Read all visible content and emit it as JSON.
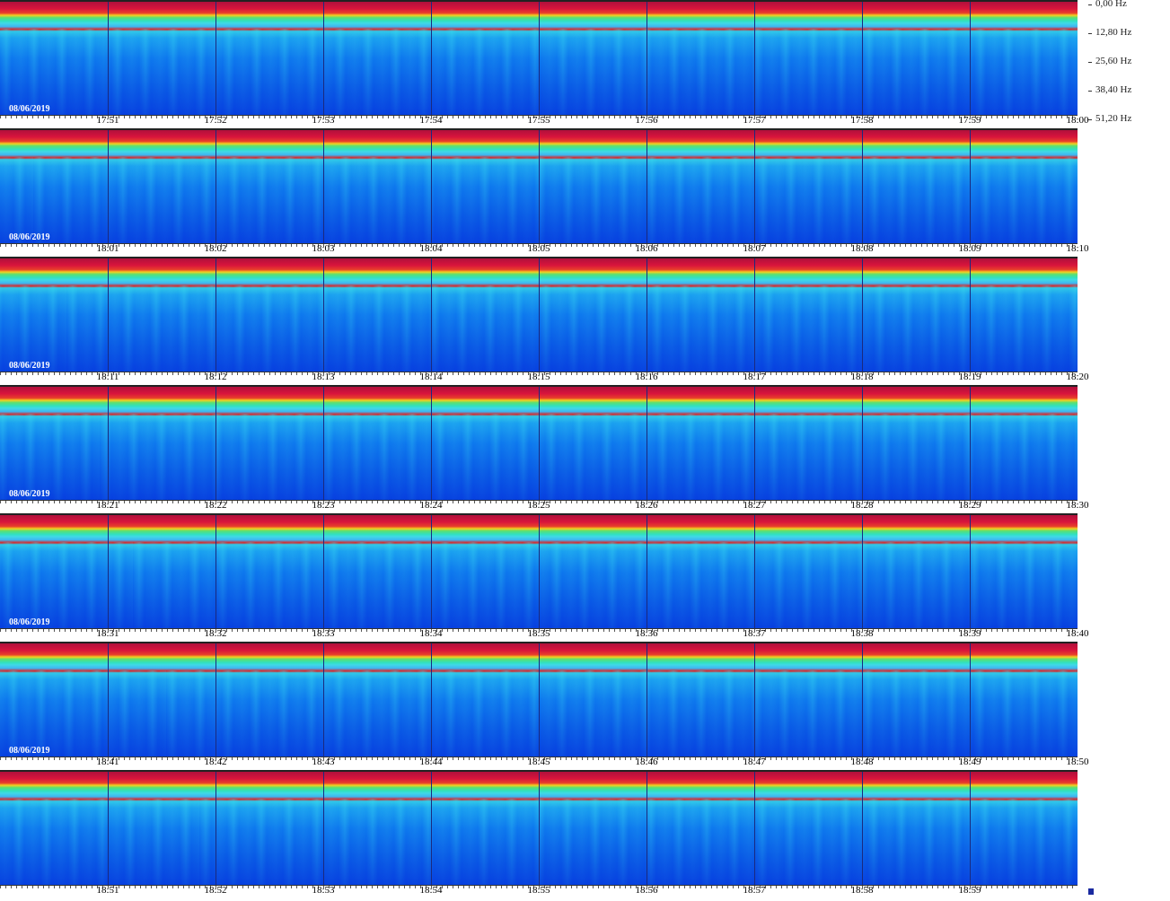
{
  "frequency_labels": [
    "0,00 Hz",
    "12,80 Hz",
    "25,60 Hz",
    "38,40 Hz",
    "51,20 Hz"
  ],
  "rows": [
    {
      "date": "08/06/2019",
      "times": [
        "17:51",
        "17:52",
        "17:53",
        "17:54",
        "17:55",
        "17:56",
        "17:57",
        "17:58",
        "17:59",
        "18:00"
      ]
    },
    {
      "date": "08/06/2019",
      "times": [
        "18:01",
        "18:02",
        "18:03",
        "18:04",
        "18:05",
        "18:06",
        "18:07",
        "18:08",
        "18:09",
        "18:10"
      ]
    },
    {
      "date": "08/06/2019",
      "times": [
        "18:11",
        "18:12",
        "18:13",
        "18:14",
        "18:15",
        "18:16",
        "18:17",
        "18:18",
        "18:19",
        "18:20"
      ]
    },
    {
      "date": "08/06/2019",
      "times": [
        "18:21",
        "18:22",
        "18:23",
        "18:24",
        "18:25",
        "18:26",
        "18:27",
        "18:28",
        "18:29",
        "18:30"
      ]
    },
    {
      "date": "08/06/2019",
      "times": [
        "18:31",
        "18:32",
        "18:33",
        "18:34",
        "18:35",
        "18:36",
        "18:37",
        "18:38",
        "18:39",
        "18:40"
      ]
    },
    {
      "date": "08/06/2019",
      "times": [
        "18:41",
        "18:42",
        "18:43",
        "18:44",
        "18:45",
        "18:46",
        "18:47",
        "18:48",
        "18:49",
        "18:50"
      ]
    },
    {
      "times": [
        "18:51",
        "18:52",
        "18:53",
        "18:54",
        "18:55",
        "18:56",
        "18:57",
        "18:58",
        "18:59"
      ]
    }
  ]
}
